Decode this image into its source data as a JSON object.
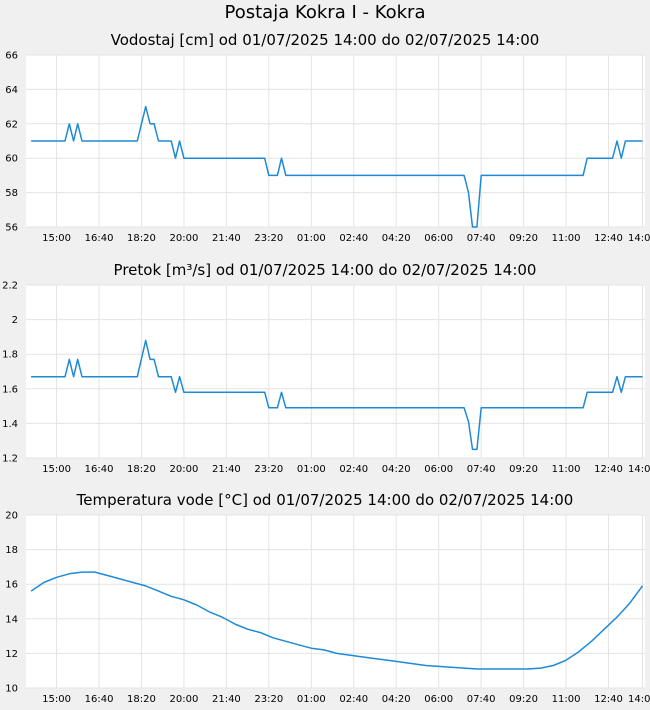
{
  "title": "Postaja Kokra I - Kokra",
  "colors": {
    "line": "#1e8ad6",
    "plot_bg": "#ffffff",
    "page_bg": "#f0f0f0",
    "grid": "#e3e3e3"
  },
  "chart_data": [
    {
      "type": "line",
      "title": "Vodostaj [cm] od 01/07/2025 14:00 do 02/07/2025 14:00",
      "xlabel": "",
      "ylabel": "",
      "ylim": [
        56,
        66
      ],
      "yticks": [
        "56",
        "58",
        "60",
        "62",
        "64",
        "66"
      ],
      "xlim": [
        13.8,
        38.1
      ],
      "xticks": [
        {
          "x": 15.0,
          "label": "15:00"
        },
        {
          "x": 16.667,
          "label": "16:40"
        },
        {
          "x": 18.333,
          "label": "18:20"
        },
        {
          "x": 20.0,
          "label": "20:00"
        },
        {
          "x": 21.667,
          "label": "21:40"
        },
        {
          "x": 23.333,
          "label": "23:20"
        },
        {
          "x": 25.0,
          "label": "01:00"
        },
        {
          "x": 26.667,
          "label": "02:40"
        },
        {
          "x": 28.333,
          "label": "04:20"
        },
        {
          "x": 30.0,
          "label": "06:00"
        },
        {
          "x": 31.667,
          "label": "07:40"
        },
        {
          "x": 33.333,
          "label": "09:20"
        },
        {
          "x": 35.0,
          "label": "11:00"
        },
        {
          "x": 36.667,
          "label": "12:40"
        },
        {
          "x": 38.0,
          "label": "14:00"
        }
      ],
      "grid": true,
      "series": [
        {
          "x": [
            14.0,
            15.33,
            15.5,
            15.67,
            15.83,
            16.0,
            18.17,
            18.5,
            18.67,
            18.83,
            19.0,
            19.5,
            19.67,
            19.83,
            20.0,
            23.17,
            23.33,
            23.67,
            23.83,
            24.0,
            31.0,
            31.17,
            31.33,
            31.5,
            31.67,
            35.67,
            35.83,
            36.83,
            37.0,
            37.17,
            37.33,
            38.0
          ],
          "y": [
            61,
            61,
            62,
            61,
            62,
            61,
            61,
            63,
            62,
            62,
            61,
            61,
            60,
            61,
            60,
            60,
            59,
            59,
            60,
            59,
            59,
            58,
            56,
            56,
            59,
            59,
            60,
            60,
            61,
            60,
            61,
            61
          ]
        }
      ]
    },
    {
      "type": "line",
      "title": "Pretok [m³/s] od 01/07/2025 14:00 do 02/07/2025 14:00",
      "xlabel": "",
      "ylabel": "",
      "ylim": [
        1.2,
        2.2
      ],
      "yticks": [
        "1.2",
        "1.4",
        "1.6",
        "1.8",
        "2",
        "2.2"
      ],
      "xlim": [
        13.8,
        38.1
      ],
      "xticks": [
        {
          "x": 15.0,
          "label": "15:00"
        },
        {
          "x": 16.667,
          "label": "16:40"
        },
        {
          "x": 18.333,
          "label": "18:20"
        },
        {
          "x": 20.0,
          "label": "20:00"
        },
        {
          "x": 21.667,
          "label": "21:40"
        },
        {
          "x": 23.333,
          "label": "23:20"
        },
        {
          "x": 25.0,
          "label": "01:00"
        },
        {
          "x": 26.667,
          "label": "02:40"
        },
        {
          "x": 28.333,
          "label": "04:20"
        },
        {
          "x": 30.0,
          "label": "06:00"
        },
        {
          "x": 31.667,
          "label": "07:40"
        },
        {
          "x": 33.333,
          "label": "09:20"
        },
        {
          "x": 35.0,
          "label": "11:00"
        },
        {
          "x": 36.667,
          "label": "12:40"
        },
        {
          "x": 38.0,
          "label": "14:00"
        }
      ],
      "grid": true,
      "series": [
        {
          "x": [
            14.0,
            15.33,
            15.5,
            15.67,
            15.83,
            16.0,
            18.17,
            18.5,
            18.67,
            18.83,
            19.0,
            19.5,
            19.67,
            19.83,
            20.0,
            23.17,
            23.33,
            23.67,
            23.83,
            24.0,
            31.0,
            31.17,
            31.33,
            31.5,
            31.67,
            35.67,
            35.83,
            36.83,
            37.0,
            37.17,
            37.33,
            38.0
          ],
          "y": [
            1.67,
            1.67,
            1.77,
            1.67,
            1.77,
            1.67,
            1.67,
            1.88,
            1.77,
            1.77,
            1.67,
            1.67,
            1.58,
            1.67,
            1.58,
            1.58,
            1.49,
            1.49,
            1.58,
            1.49,
            1.49,
            1.41,
            1.25,
            1.25,
            1.49,
            1.49,
            1.58,
            1.58,
            1.67,
            1.58,
            1.67,
            1.67
          ]
        }
      ]
    },
    {
      "type": "line",
      "title": "Temperatura vode [°C] od 01/07/2025 14:00 do 02/07/2025 14:00",
      "xlabel": "",
      "ylabel": "",
      "ylim": [
        10,
        20
      ],
      "yticks": [
        "10",
        "12",
        "14",
        "16",
        "18",
        "20"
      ],
      "xlim": [
        13.8,
        38.1
      ],
      "xticks": [
        {
          "x": 15.0,
          "label": "15:00"
        },
        {
          "x": 16.667,
          "label": "16:40"
        },
        {
          "x": 18.333,
          "label": "18:20"
        },
        {
          "x": 20.0,
          "label": "20:00"
        },
        {
          "x": 21.667,
          "label": "21:40"
        },
        {
          "x": 23.333,
          "label": "23:20"
        },
        {
          "x": 25.0,
          "label": "01:00"
        },
        {
          "x": 26.667,
          "label": "02:40"
        },
        {
          "x": 28.333,
          "label": "04:20"
        },
        {
          "x": 30.0,
          "label": "06:00"
        },
        {
          "x": 31.667,
          "label": "07:40"
        },
        {
          "x": 33.333,
          "label": "09:20"
        },
        {
          "x": 35.0,
          "label": "11:00"
        },
        {
          "x": 36.667,
          "label": "12:40"
        },
        {
          "x": 38.0,
          "label": "14:00"
        }
      ],
      "grid": true,
      "series": [
        {
          "x": [
            14.0,
            14.5,
            15.0,
            15.5,
            16.0,
            16.5,
            17.0,
            17.5,
            18.0,
            18.5,
            19.0,
            19.5,
            20.0,
            20.5,
            21.0,
            21.5,
            22.0,
            22.5,
            23.0,
            23.5,
            24.0,
            24.5,
            25.0,
            25.5,
            26.0,
            26.5,
            27.0,
            27.5,
            28.0,
            28.5,
            29.0,
            29.5,
            30.0,
            30.5,
            31.0,
            31.5,
            32.0,
            32.5,
            33.0,
            33.5,
            34.0,
            34.5,
            35.0,
            35.5,
            36.0,
            36.5,
            37.0,
            37.5,
            38.0
          ],
          "y": [
            15.6,
            16.1,
            16.4,
            16.6,
            16.7,
            16.7,
            16.5,
            16.3,
            16.1,
            15.9,
            15.6,
            15.3,
            15.1,
            14.8,
            14.4,
            14.1,
            13.7,
            13.4,
            13.2,
            12.9,
            12.7,
            12.5,
            12.3,
            12.2,
            12.0,
            11.9,
            11.8,
            11.7,
            11.6,
            11.5,
            11.4,
            11.3,
            11.25,
            11.2,
            11.15,
            11.1,
            11.1,
            11.1,
            11.1,
            11.1,
            11.15,
            11.3,
            11.6,
            12.1,
            12.7,
            13.4,
            14.1,
            14.9,
            15.9
          ]
        }
      ]
    }
  ]
}
